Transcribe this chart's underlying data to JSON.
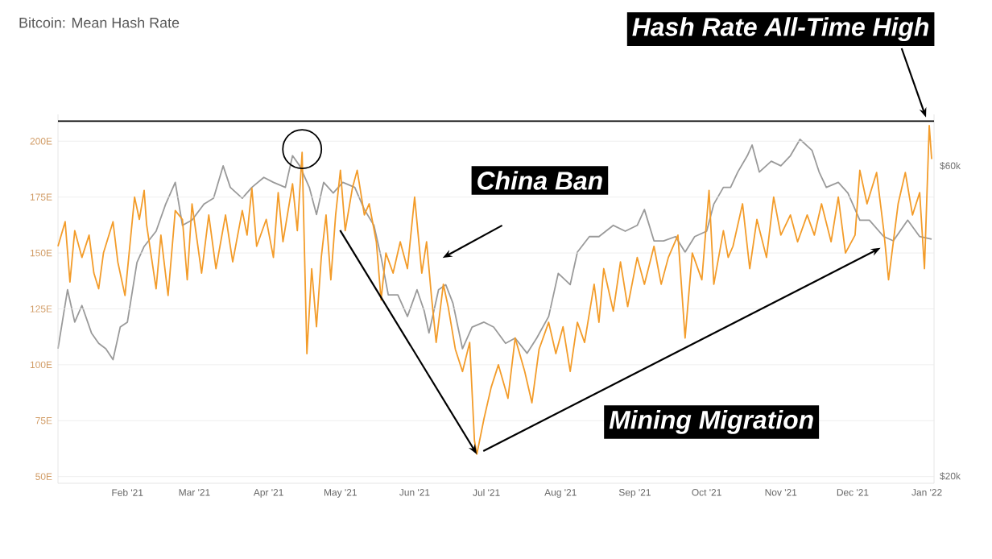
{
  "chart_data": {
    "type": "line",
    "title": "Bitcoin: Mean Hash Rate",
    "xlim": [
      "2021-01-03",
      "2022-01-04"
    ],
    "xticks": [
      {
        "value": "2021-02-01",
        "label": "Feb '21"
      },
      {
        "value": "2021-03-01",
        "label": "Mar '21"
      },
      {
        "value": "2021-04-01",
        "label": "Apr '21"
      },
      {
        "value": "2021-05-01",
        "label": "May '21"
      },
      {
        "value": "2021-06-01",
        "label": "Jun '21"
      },
      {
        "value": "2021-07-01",
        "label": "Jul '21"
      },
      {
        "value": "2021-08-01",
        "label": "Aug '21"
      },
      {
        "value": "2021-09-01",
        "label": "Sep '21"
      },
      {
        "value": "2021-10-01",
        "label": "Oct '21"
      },
      {
        "value": "2021-11-01",
        "label": "Nov '21"
      },
      {
        "value": "2021-12-01",
        "label": "Dec '21"
      },
      {
        "value": "2022-01-01",
        "label": "Jan '22"
      }
    ],
    "ylim": [
      47,
      212
    ],
    "yticks": [
      {
        "value": 50,
        "label": "50E"
      },
      {
        "value": 75,
        "label": "75E"
      },
      {
        "value": 100,
        "label": "100E"
      },
      {
        "value": 125,
        "label": "125E"
      },
      {
        "value": 150,
        "label": "150E"
      },
      {
        "value": 175,
        "label": "175E"
      },
      {
        "value": 200,
        "label": "200E"
      }
    ],
    "y2lim": [
      19.5,
      72
    ],
    "y2ticks": [
      {
        "value": 20,
        "label": "$20k"
      },
      {
        "value": 60,
        "label": "$60k"
      }
    ],
    "log": "y2",
    "grid": "y",
    "series": [
      {
        "color": "#9a9a9a",
        "axis": "y2",
        "x": [
          "2021-01-03",
          "2021-01-07",
          "2021-01-10",
          "2021-01-13",
          "2021-01-17",
          "2021-01-20",
          "2021-01-23",
          "2021-01-26",
          "2021-01-29",
          "2021-02-01",
          "2021-02-05",
          "2021-02-08",
          "2021-02-13",
          "2021-02-17",
          "2021-02-21",
          "2021-02-24",
          "2021-02-28",
          "2021-03-05",
          "2021-03-09",
          "2021-03-13",
          "2021-03-16",
          "2021-03-21",
          "2021-03-25",
          "2021-03-30",
          "2021-04-03",
          "2021-04-08",
          "2021-04-11",
          "2021-04-14",
          "2021-04-18",
          "2021-04-21",
          "2021-04-24",
          "2021-04-28",
          "2021-05-02",
          "2021-05-07",
          "2021-05-11",
          "2021-05-15",
          "2021-05-18",
          "2021-05-21",
          "2021-05-25",
          "2021-05-29",
          "2021-06-02",
          "2021-06-05",
          "2021-06-07",
          "2021-06-11",
          "2021-06-14",
          "2021-06-17",
          "2021-06-21",
          "2021-06-25",
          "2021-06-30",
          "2021-07-04",
          "2021-07-09",
          "2021-07-13",
          "2021-07-18",
          "2021-07-22",
          "2021-07-27",
          "2021-07-31",
          "2021-08-05",
          "2021-08-08",
          "2021-08-13",
          "2021-08-17",
          "2021-08-23",
          "2021-08-28",
          "2021-09-02",
          "2021-09-05",
          "2021-09-09",
          "2021-09-13",
          "2021-09-18",
          "2021-09-22",
          "2021-09-26",
          "2021-10-01",
          "2021-10-04",
          "2021-10-08",
          "2021-10-11",
          "2021-10-14",
          "2021-10-18",
          "2021-10-20",
          "2021-10-23",
          "2021-10-28",
          "2021-11-01",
          "2021-11-05",
          "2021-11-09",
          "2021-11-14",
          "2021-11-17",
          "2021-11-20",
          "2021-11-25",
          "2021-11-29",
          "2021-12-04",
          "2021-12-08",
          "2021-12-14",
          "2021-12-18",
          "2021-12-24",
          "2021-12-29",
          "2022-01-03"
        ],
        "values": [
          31.4,
          38.7,
          34.5,
          36.6,
          33.2,
          32.0,
          31.4,
          30.2,
          33.9,
          34.5,
          42.6,
          45.1,
          47.6,
          52.4,
          56.6,
          48.6,
          49.5,
          52.4,
          53.5,
          60,
          55.6,
          53.5,
          55.6,
          57.6,
          56.6,
          55.6,
          62.2,
          60,
          55.6,
          50.5,
          56.6,
          54.5,
          56.6,
          55.6,
          51.4,
          48.6,
          43.4,
          38.0,
          38.0,
          35.2,
          38.7,
          35.9,
          33.2,
          38.7,
          39.4,
          36.9,
          31.4,
          33.9,
          34.5,
          33.9,
          32.0,
          32.6,
          30.9,
          32.6,
          35.2,
          41.0,
          39.4,
          44.2,
          46.7,
          46.7,
          48.6,
          47.6,
          48.6,
          51.4,
          46.0,
          46.0,
          46.7,
          44.2,
          46.7,
          47.6,
          52.4,
          55.6,
          55.6,
          58.7,
          62.2,
          64.6,
          58.7,
          61.0,
          60,
          62.2,
          65.9,
          63.4,
          58.7,
          55.6,
          56.6,
          54.5,
          49.5,
          49.5,
          46.7,
          46.0,
          49.5,
          46.7,
          46.3
        ]
      },
      {
        "color": "#f39c2a",
        "x": [
          "2021-01-03",
          "2021-01-06",
          "2021-01-08",
          "2021-01-10",
          "2021-01-13",
          "2021-01-16",
          "2021-01-18",
          "2021-01-20",
          "2021-01-22",
          "2021-01-26",
          "2021-01-28",
          "2021-01-31",
          "2021-02-04",
          "2021-02-06",
          "2021-02-08",
          "2021-02-09",
          "2021-02-13",
          "2021-02-15",
          "2021-02-18",
          "2021-02-21",
          "2021-02-24",
          "2021-02-26",
          "2021-02-28",
          "2021-03-04",
          "2021-03-07",
          "2021-03-10",
          "2021-03-14",
          "2021-03-17",
          "2021-03-21",
          "2021-03-23",
          "2021-03-25",
          "2021-03-27",
          "2021-03-31",
          "2021-04-03",
          "2021-04-05",
          "2021-04-07",
          "2021-04-11",
          "2021-04-13",
          "2021-04-15",
          "2021-04-17",
          "2021-04-19",
          "2021-04-21",
          "2021-04-23",
          "2021-04-25",
          "2021-04-27",
          "2021-04-29",
          "2021-05-01",
          "2021-05-03",
          "2021-05-06",
          "2021-05-08",
          "2021-05-11",
          "2021-05-13",
          "2021-05-16",
          "2021-05-18",
          "2021-05-20",
          "2021-05-23",
          "2021-05-26",
          "2021-05-29",
          "2021-06-01",
          "2021-06-04",
          "2021-06-06",
          "2021-06-08",
          "2021-06-10",
          "2021-06-13",
          "2021-06-15",
          "2021-06-18",
          "2021-06-21",
          "2021-06-24",
          "2021-06-26",
          "2021-06-27",
          "2021-06-30",
          "2021-07-03",
          "2021-07-06",
          "2021-07-10",
          "2021-07-13",
          "2021-07-17",
          "2021-07-20",
          "2021-07-23",
          "2021-07-27",
          "2021-07-30",
          "2021-08-02",
          "2021-08-05",
          "2021-08-08",
          "2021-08-11",
          "2021-08-15",
          "2021-08-17",
          "2021-08-19",
          "2021-08-23",
          "2021-08-26",
          "2021-08-29",
          "2021-09-02",
          "2021-09-05",
          "2021-09-09",
          "2021-09-12",
          "2021-09-15",
          "2021-09-19",
          "2021-09-22",
          "2021-09-25",
          "2021-09-29",
          "2021-10-02",
          "2021-10-04",
          "2021-10-08",
          "2021-10-10",
          "2021-10-12",
          "2021-10-16",
          "2021-10-19",
          "2021-10-22",
          "2021-10-26",
          "2021-10-29",
          "2021-11-01",
          "2021-11-05",
          "2021-11-08",
          "2021-11-12",
          "2021-11-15",
          "2021-11-18",
          "2021-11-22",
          "2021-11-25",
          "2021-11-28",
          "2021-12-02",
          "2021-12-04",
          "2021-12-07",
          "2021-12-11",
          "2021-12-14",
          "2021-12-16",
          "2021-12-20",
          "2021-12-23",
          "2021-12-26",
          "2021-12-29",
          "2021-12-31",
          "2022-01-02",
          "2022-01-03"
        ],
        "values": [
          153,
          164,
          137,
          160,
          148,
          158,
          141,
          134,
          150,
          164,
          146,
          131,
          175,
          165,
          178,
          163,
          134,
          158,
          131,
          169,
          165,
          138,
          172,
          141,
          167,
          143,
          167,
          146,
          169,
          158,
          179,
          153,
          165,
          148,
          177,
          155,
          181,
          160,
          195,
          105,
          143,
          117,
          148,
          167,
          138,
          167,
          187,
          160,
          179,
          187,
          167,
          172,
          155,
          129,
          150,
          141,
          155,
          143,
          175,
          141,
          155,
          131,
          110,
          136,
          126,
          107,
          97,
          110,
          66,
          60,
          76,
          90,
          100,
          85,
          112,
          97,
          83,
          107,
          119,
          105,
          117,
          97,
          119,
          110,
          136,
          119,
          143,
          124,
          146,
          126,
          148,
          136,
          153,
          136,
          148,
          158,
          112,
          150,
          138,
          178,
          136,
          160,
          148,
          153,
          172,
          143,
          165,
          148,
          175,
          158,
          167,
          155,
          167,
          158,
          172,
          155,
          175,
          150,
          158,
          187,
          172,
          186,
          160,
          138,
          172,
          186,
          167,
          177,
          143,
          207,
          192
        ]
      }
    ],
    "ref_lines": [
      {
        "axis": "y",
        "value": 209,
        "color": "#000000"
      }
    ],
    "annotations": [
      "Hash Rate All-Time High",
      "China Ban",
      "Mining Migration"
    ]
  }
}
